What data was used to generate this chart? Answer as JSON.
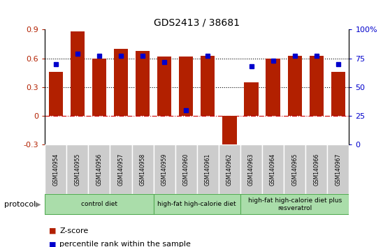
{
  "title": "GDS2413 / 38681",
  "samples": [
    "GSM140954",
    "GSM140955",
    "GSM140956",
    "GSM140957",
    "GSM140958",
    "GSM140959",
    "GSM140960",
    "GSM140961",
    "GSM140962",
    "GSM140963",
    "GSM140964",
    "GSM140965",
    "GSM140966",
    "GSM140967"
  ],
  "z_scores": [
    0.46,
    0.88,
    0.6,
    0.7,
    0.68,
    0.62,
    0.62,
    0.63,
    -0.32,
    0.35,
    0.6,
    0.63,
    0.63,
    0.46
  ],
  "pct_ranks": [
    0.7,
    0.79,
    0.77,
    0.77,
    0.77,
    0.72,
    0.3,
    0.77,
    null,
    0.68,
    0.73,
    0.77,
    0.77,
    0.7
  ],
  "bar_color": "#B22000",
  "dot_color": "#0000CC",
  "zero_line_color": "#CC0000",
  "ylim_left": [
    -0.3,
    0.9
  ],
  "ylim_right": [
    0,
    100
  ],
  "yticks_left": [
    -0.3,
    0,
    0.3,
    0.6,
    0.9
  ],
  "yticks_right": [
    0,
    25,
    50,
    75,
    100
  ],
  "ytick_labels_left": [
    "-0.3",
    "0",
    "0.3",
    "0.6",
    "0.9"
  ],
  "ytick_labels_right": [
    "0",
    "25",
    "50",
    "75",
    "100%"
  ],
  "hlines": [
    0.3,
    0.6
  ],
  "groups": [
    {
      "label": "control diet",
      "start": 0,
      "end": 5
    },
    {
      "label": "high-fat high-calorie diet",
      "start": 5,
      "end": 9
    },
    {
      "label": "high-fat high-calorie diet plus\nresveratrol",
      "start": 9,
      "end": 14
    }
  ],
  "group_color": "#AADDAA",
  "group_border_color": "#55AA55",
  "sample_box_color": "#CCCCCC",
  "protocol_label": "protocol",
  "bar_width": 0.65
}
